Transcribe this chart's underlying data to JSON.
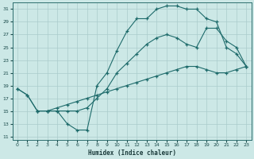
{
  "xlabel": "Humidex (Indice chaleur)",
  "background_color": "#cce8e6",
  "grid_color": "#aacccc",
  "line_color": "#1e6b6b",
  "xlim": [
    -0.5,
    23.5
  ],
  "ylim": [
    10.5,
    32
  ],
  "xticks": [
    0,
    1,
    2,
    3,
    4,
    5,
    6,
    7,
    8,
    9,
    10,
    11,
    12,
    13,
    14,
    15,
    16,
    17,
    18,
    19,
    20,
    21,
    22,
    23
  ],
  "yticks": [
    11,
    13,
    15,
    17,
    19,
    21,
    23,
    25,
    27,
    29,
    31
  ],
  "line1_x": [
    0,
    1,
    2,
    3,
    4,
    5,
    6,
    7,
    8,
    9,
    10,
    11,
    12,
    13,
    14,
    15,
    16,
    17,
    18,
    19,
    20,
    21,
    22,
    23
  ],
  "line1_y": [
    18.5,
    17.5,
    15,
    15,
    15,
    13,
    12,
    12,
    19,
    21,
    24.5,
    27.5,
    29.5,
    29.5,
    31,
    31.5,
    31.5,
    31,
    31,
    29.5,
    29,
    25,
    24,
    22
  ],
  "line2_x": [
    2,
    3,
    4,
    5,
    6,
    7,
    8,
    9,
    10,
    11,
    12,
    13,
    14,
    15,
    16,
    17,
    18,
    19,
    20,
    21,
    22,
    23
  ],
  "line2_y": [
    15,
    15,
    15,
    15,
    15,
    15.5,
    17,
    18.5,
    21,
    22.5,
    24,
    25.5,
    26.5,
    27,
    26.5,
    25.5,
    25,
    28,
    28,
    26,
    25,
    22
  ],
  "line3_x": [
    0,
    1,
    2,
    3,
    4,
    5,
    6,
    7,
    8,
    9,
    10,
    11,
    12,
    13,
    14,
    15,
    16,
    17,
    18,
    19,
    20,
    21,
    22,
    23
  ],
  "line3_y": [
    18.5,
    17.5,
    15,
    15,
    15.5,
    16,
    16.5,
    17,
    17.5,
    18,
    18.5,
    19,
    19.5,
    20,
    20.5,
    21,
    21.5,
    22,
    22,
    21.5,
    21,
    21,
    21.5,
    22
  ]
}
